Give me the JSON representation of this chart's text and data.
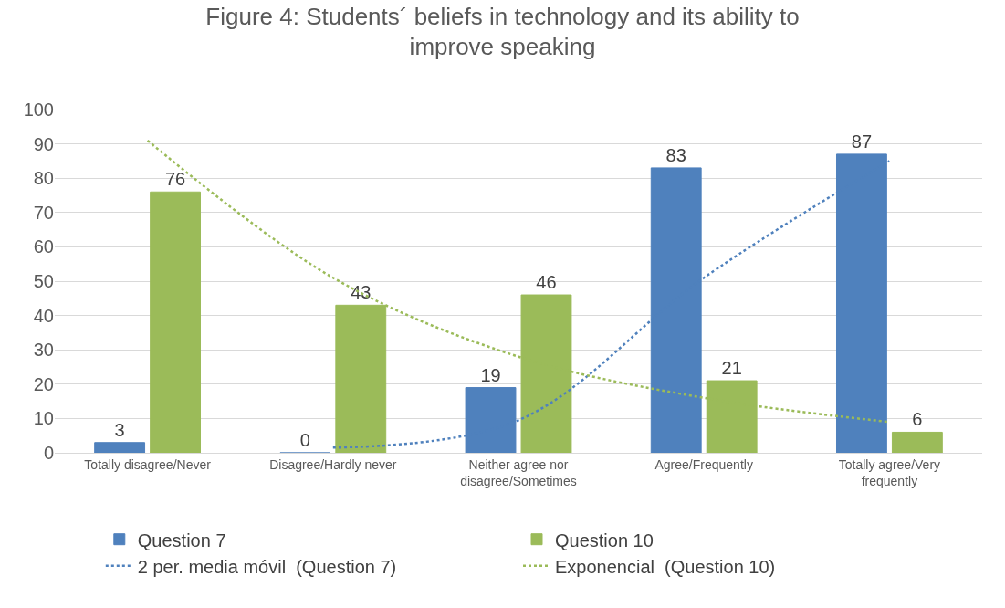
{
  "chart_data": {
    "type": "bar",
    "title": "Figure 4: Students´ beliefs in technology and its ability to improve speaking",
    "categories": [
      "Totally disagree/Never",
      "Disagree/Hardly never",
      "Neither agree nor disagree/Sometimes",
      "Agree/Frequently",
      "Totally agree/Very frequently"
    ],
    "series": [
      {
        "name": "Question 7",
        "color": "#4f81bd",
        "values": [
          3,
          0,
          19,
          83,
          87
        ],
        "value_labels": [
          "3",
          "0",
          "19",
          "83",
          "87"
        ]
      },
      {
        "name": "Question 10",
        "color": "#9bbb59",
        "values": [
          76,
          43,
          46,
          21,
          6
        ],
        "value_labels": [
          "76",
          "43",
          "46",
          "21",
          "6"
        ]
      },
      {
        "name": "2 per. media móvil  (Question 7)",
        "type": "line",
        "line_style": "dotted",
        "color": "#4f81bd",
        "values": [
          null,
          1.5,
          9.5,
          51,
          85
        ]
      },
      {
        "name": "Exponencial  (Question 10)",
        "type": "line",
        "line_style": "dotted",
        "color": "#9bbb59",
        "values": [
          91,
          51,
          28,
          16,
          9
        ]
      }
    ],
    "ylim": [
      0,
      100
    ],
    "yticks": [
      0,
      10,
      20,
      30,
      40,
      50,
      60,
      70,
      80,
      90,
      100
    ],
    "grid": "y",
    "legend": "bottom",
    "marker": "none"
  }
}
